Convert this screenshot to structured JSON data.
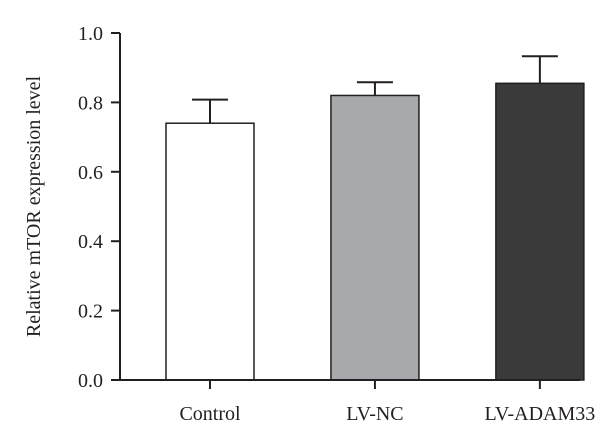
{
  "chart_data": {
    "type": "bar",
    "title": "",
    "xlabel": "",
    "ylabel": "Relative mTOR expression level",
    "ylim": [
      0,
      1.0
    ],
    "yticks": [
      "0.0",
      "0.2",
      "0.4",
      "0.6",
      "0.8",
      "1.0"
    ],
    "grid": false,
    "categories": [
      "Control",
      "LV-NC",
      "LV-ADAM33"
    ],
    "values": [
      0.74,
      0.82,
      0.855
    ],
    "errors": [
      0.068,
      0.038,
      0.078
    ],
    "colors": [
      "#ffffff",
      "#a7a9ac",
      "#3a3a3a"
    ],
    "edge_color": "#231f20"
  }
}
